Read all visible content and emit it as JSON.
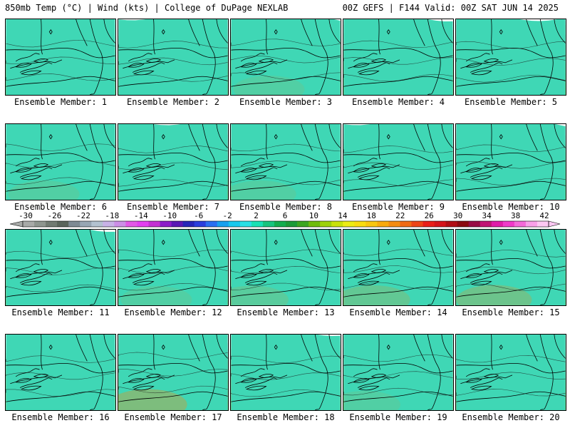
{
  "header": {
    "left": "850mb Temp (°C) | Wind (kts) | College of DuPage NEXLAB",
    "right": "00Z GEFS | F144 Valid: 00Z SAT JUN 14 2025"
  },
  "scale": {
    "labels": [
      "-30",
      "-26",
      "-22",
      "-18",
      "-14",
      "-10",
      "-6",
      "-2",
      "2",
      "6",
      "10",
      "14",
      "18",
      "22",
      "26",
      "30",
      "34",
      "38",
      "42"
    ],
    "colors": [
      "#a8aaa8",
      "#8e958f",
      "#717a72",
      "#5a645b",
      "#7e8a93",
      "#97a6b3",
      "#b3c2d0",
      "#c8b2e6",
      "#cc8ee6",
      "#e257e6",
      "#e23ef0",
      "#c330d2",
      "#8c1cc8",
      "#5a18b4",
      "#2626b8",
      "#2a3edc",
      "#2a6ef0",
      "#18a0ee",
      "#18c8ee",
      "#28e0e4",
      "#18e0b4",
      "#18c47e",
      "#14ac4e",
      "#1c9a38",
      "#3ca620",
      "#6ebc0c",
      "#9cd20a",
      "#c8e208",
      "#ecec14",
      "#f8dc10",
      "#f8c60e",
      "#f8aa0c",
      "#f48c10",
      "#f06a14",
      "#ec4416",
      "#e81e18",
      "#d4141a",
      "#b00e14",
      "#8a0a10",
      "#980c44",
      "#c01474",
      "#e01ca8",
      "#f03ac8",
      "#f46ad8",
      "#f8a0e8",
      "#fcc8f2"
    ]
  },
  "panels": [
    {
      "label": "Ensemble Member: 1",
      "cool": 0.55,
      "warm": 0.45
    },
    {
      "label": "Ensemble Member: 2",
      "cool": 0.65,
      "warm": 0.4
    },
    {
      "label": "Ensemble Member: 3",
      "cool": 0.45,
      "warm": 0.55
    },
    {
      "label": "Ensemble Member: 4",
      "cool": 0.6,
      "warm": 0.4
    },
    {
      "label": "Ensemble Member: 5",
      "cool": 0.75,
      "warm": 0.4
    },
    {
      "label": "Ensemble Member: 6",
      "cool": 0.45,
      "warm": 0.55
    },
    {
      "label": "Ensemble Member: 7",
      "cool": 0.7,
      "warm": 0.45
    },
    {
      "label": "Ensemble Member: 8",
      "cool": 0.5,
      "warm": 0.55
    },
    {
      "label": "Ensemble Member: 9",
      "cool": 0.6,
      "warm": 0.35
    },
    {
      "label": "Ensemble Member: 10",
      "cool": 0.5,
      "warm": 0.45
    },
    {
      "label": "Ensemble Member: 11",
      "cool": 0.6,
      "warm": 0.4
    },
    {
      "label": "Ensemble Member: 12",
      "cool": 0.5,
      "warm": 0.55
    },
    {
      "label": "Ensemble Member: 13",
      "cool": 0.5,
      "warm": 0.6
    },
    {
      "label": "Ensemble Member: 14",
      "cool": 0.45,
      "warm": 0.65
    },
    {
      "label": "Ensemble Member: 15",
      "cool": 0.7,
      "warm": 0.7
    },
    {
      "label": "Ensemble Member: 16",
      "cool": 0.6,
      "warm": 0.45
    },
    {
      "label": "Ensemble Member: 17",
      "cool": 0.35,
      "warm": 0.8
    },
    {
      "label": "Ensemble Member: 18",
      "cool": 0.65,
      "warm": 0.45
    },
    {
      "label": "Ensemble Member: 19",
      "cool": 0.5,
      "warm": 0.55
    },
    {
      "label": "Ensemble Member: 20",
      "cool": 0.6,
      "warm": 0.5
    }
  ]
}
